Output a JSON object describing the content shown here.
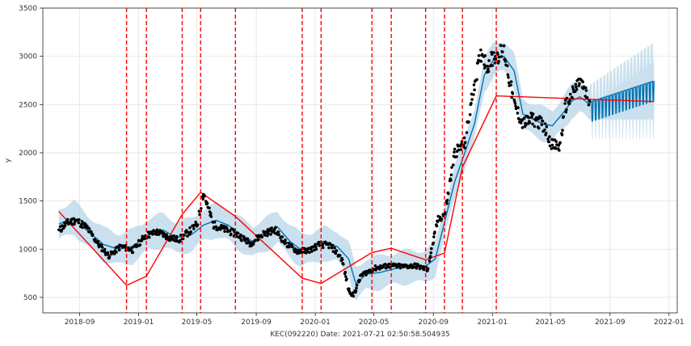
{
  "chart_data": {
    "type": "line",
    "title": "",
    "xlabel": "KEC(092220) Date: 2021-07-21 02:50:58.504935",
    "ylabel": "y",
    "grid": true,
    "ylim": [
      340,
      3500
    ],
    "xlim": [
      "2018-06-17",
      "2022-01-18"
    ],
    "y_ticks": [
      500,
      1000,
      1500,
      2000,
      2500,
      3000,
      3500
    ],
    "x_ticks": [
      "2018-09",
      "2019-01",
      "2019-05",
      "2019-09",
      "2020-01",
      "2020-05",
      "2020-09",
      "2021-01",
      "2021-05",
      "2021-09",
      "2022-01"
    ],
    "history_end": "2021-07-21",
    "colors": {
      "observed": "#000000",
      "forecast": "#0072B2",
      "interval": "#a6cbe3",
      "trend": "#ff0000",
      "changepoint": "#ff0000"
    },
    "changepoints": [
      "2018-12-07",
      "2019-01-17",
      "2019-04-01",
      "2019-05-09",
      "2019-07-20",
      "2019-12-05",
      "2020-01-13",
      "2020-04-27",
      "2020-06-06",
      "2020-08-16",
      "2020-09-24",
      "2020-10-31",
      "2021-01-09"
    ],
    "trend": {
      "x": [
        "2018-07-20",
        "2018-12-07",
        "2019-01-17",
        "2019-04-01",
        "2019-05-09",
        "2019-07-20",
        "2019-12-05",
        "2020-01-13",
        "2020-04-27",
        "2020-06-06",
        "2020-08-16",
        "2020-09-24",
        "2020-10-31",
        "2021-01-09",
        "2021-12-01"
      ],
      "y": [
        1390,
        625,
        720,
        1360,
        1590,
        1340,
        700,
        645,
        965,
        1010,
        890,
        960,
        1850,
        2590,
        2530
      ]
    },
    "observed_anchors": {
      "x": [
        "2018-07-20",
        "2018-08-05",
        "2018-08-25",
        "2018-09-15",
        "2018-10-10",
        "2018-11-01",
        "2018-11-25",
        "2018-12-20",
        "2019-01-15",
        "2019-02-10",
        "2019-03-05",
        "2019-03-25",
        "2019-04-15",
        "2019-05-02",
        "2019-05-15",
        "2019-06-05",
        "2019-07-01",
        "2019-07-25",
        "2019-08-20",
        "2019-09-15",
        "2019-10-10",
        "2019-11-01",
        "2019-11-25",
        "2019-12-20",
        "2020-01-10",
        "2020-02-01",
        "2020-02-25",
        "2020-03-10",
        "2020-03-20",
        "2020-04-05",
        "2020-05-01",
        "2020-06-01",
        "2020-07-01",
        "2020-07-25",
        "2020-08-20",
        "2020-09-10",
        "2020-09-25",
        "2020-10-15",
        "2020-11-05",
        "2020-11-25",
        "2020-12-10",
        "2020-12-20",
        "2021-01-05",
        "2021-01-25",
        "2021-02-15",
        "2021-03-05",
        "2021-03-25",
        "2021-04-15",
        "2021-05-05",
        "2021-05-20",
        "2021-06-01",
        "2021-06-15",
        "2021-07-01",
        "2021-07-15",
        "2021-07-21"
      ],
      "y": [
        1190,
        1270,
        1300,
        1230,
        1050,
        930,
        1030,
        990,
        1140,
        1180,
        1120,
        1100,
        1180,
        1260,
        1580,
        1250,
        1200,
        1150,
        1060,
        1160,
        1200,
        1060,
        980,
        990,
        1050,
        1040,
        900,
        580,
        520,
        730,
        800,
        830,
        820,
        830,
        790,
        1300,
        1370,
        2000,
        2100,
        2730,
        3050,
        2900,
        3000,
        3050,
        2500,
        2300,
        2350,
        2300,
        2080,
        2060,
        2480,
        2600,
        2750,
        2580,
        2510
      ]
    },
    "fitted": {
      "x": [
        "2018-07-20",
        "2018-08-20",
        "2018-09-15",
        "2018-10-20",
        "2018-11-20",
        "2018-12-20",
        "2019-01-20",
        "2019-02-20",
        "2019-03-20",
        "2019-04-20",
        "2019-05-15",
        "2019-06-10",
        "2019-07-05",
        "2019-08-01",
        "2019-08-25",
        "2019-09-20",
        "2019-10-15",
        "2019-11-10",
        "2019-12-01",
        "2019-12-25",
        "2020-01-20",
        "2020-02-15",
        "2020-03-10",
        "2020-03-25",
        "2020-04-15",
        "2020-05-15",
        "2020-06-15",
        "2020-07-15",
        "2020-08-15",
        "2020-09-05",
        "2020-09-25",
        "2020-10-15",
        "2020-11-05",
        "2020-11-25",
        "2020-12-15",
        "2021-01-05",
        "2021-01-25",
        "2021-02-15",
        "2021-03-05",
        "2021-03-25",
        "2021-04-15",
        "2021-05-05",
        "2021-05-25",
        "2021-06-15",
        "2021-07-01",
        "2021-07-21"
      ],
      "y": [
        1260,
        1330,
        1200,
        1050,
        1000,
        1030,
        1150,
        1200,
        1120,
        1150,
        1250,
        1300,
        1250,
        1150,
        1080,
        1150,
        1230,
        1080,
        1000,
        1010,
        1060,
        1030,
        900,
        640,
        740,
        760,
        800,
        820,
        820,
        900,
        1300,
        1700,
        2000,
        2300,
        2800,
        2980,
        3000,
        2850,
        2400,
        2350,
        2300,
        2280,
        2400,
        2540,
        2580,
        2500
      ]
    },
    "forecast": {
      "x_start": "2021-07-21",
      "x_end": "2021-12-01",
      "y_start": 2500,
      "y_end": 2720,
      "weekly_amplitude": 180
    }
  }
}
